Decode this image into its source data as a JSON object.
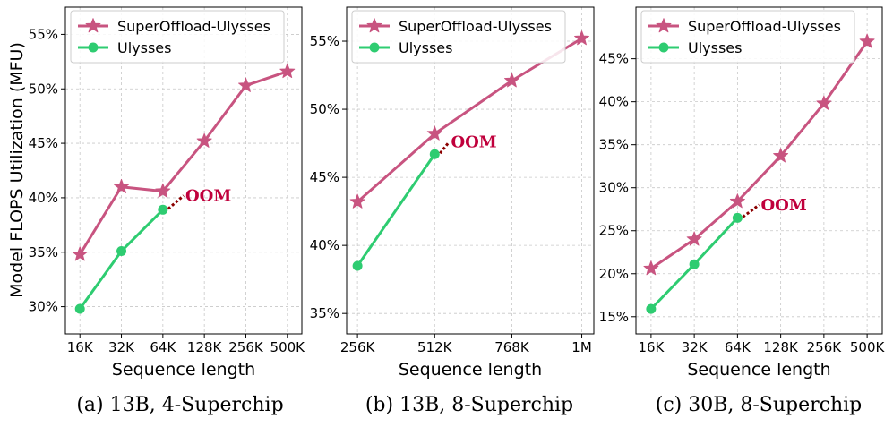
{
  "colors": {
    "superoffload": "#c85480",
    "ulysses": "#2ecc71",
    "oom_line": "#8b0000",
    "oom_text": "#c0003c",
    "grid": "#c8c8c8"
  },
  "y_axis_label": "Model FLOPS Utilization (MFU)",
  "chart_data": [
    {
      "type": "line",
      "caption": "(a) 13B,  4-Superchip",
      "xlabel": "Sequence length",
      "ylabel": "Model FLOPS Utilization (MFU)",
      "x_ticks": [
        "16K",
        "32K",
        "64K",
        "128K",
        "256K",
        "500K"
      ],
      "x_tick_positions": [
        0,
        1,
        2,
        3,
        4,
        5
      ],
      "xlim": [
        -0.35,
        5.35
      ],
      "ylim": [
        27.5,
        57.5
      ],
      "y_ticks": [
        30,
        35,
        40,
        45,
        50,
        55
      ],
      "y_tick_labels": [
        "30%",
        "35%",
        "40%",
        "45%",
        "50%",
        "55%"
      ],
      "grid": true,
      "legend": "top-left",
      "series": [
        {
          "name": "SuperOffload-Ulysses",
          "marker": "star",
          "x": [
            0,
            1,
            2,
            3,
            4,
            5
          ],
          "values": [
            34.8,
            41.0,
            40.6,
            45.2,
            50.3,
            51.6
          ]
        },
        {
          "name": "Ulysses",
          "marker": "circle",
          "x": [
            0,
            1,
            2
          ],
          "values": [
            29.8,
            35.1,
            38.9
          ]
        }
      ],
      "annotation": {
        "text": "OOM",
        "from": [
          2,
          38.9
        ],
        "to": [
          2.5,
          40.2
        ]
      }
    },
    {
      "type": "line",
      "caption": "(b) 13B,  8-Superchip",
      "xlabel": "Sequence length",
      "ylabel": "",
      "x_ticks": [
        "256K",
        "512K",
        "768K",
        "1M"
      ],
      "x_tick_positions": [
        256,
        512,
        768,
        1000
      ],
      "xlim": [
        220,
        1040
      ],
      "ylim": [
        33.5,
        57.5
      ],
      "y_ticks": [
        35,
        40,
        45,
        50,
        55
      ],
      "y_tick_labels": [
        "35%",
        "40%",
        "45%",
        "50%",
        "55%"
      ],
      "grid": true,
      "legend": "top-left",
      "series": [
        {
          "name": "SuperOffload-Ulysses",
          "marker": "star",
          "x": [
            256,
            512,
            768,
            1000
          ],
          "values": [
            43.2,
            48.2,
            52.1,
            55.2
          ]
        },
        {
          "name": "Ulysses",
          "marker": "circle",
          "x": [
            256,
            512
          ],
          "values": [
            38.5,
            46.7
          ]
        }
      ],
      "annotation": {
        "text": "OOM",
        "from": [
          512,
          46.7
        ],
        "to": [
          560,
          47.6
        ]
      }
    },
    {
      "type": "line",
      "caption": "(c) 30B,  8-Superchip",
      "xlabel": "Sequence length",
      "ylabel": "",
      "x_ticks": [
        "16K",
        "32K",
        "64K",
        "128K",
        "256K",
        "500K"
      ],
      "x_tick_positions": [
        0,
        1,
        2,
        3,
        4,
        5
      ],
      "xlim": [
        -0.35,
        5.35
      ],
      "ylim": [
        13.0,
        51.0
      ],
      "y_ticks": [
        15,
        20,
        25,
        30,
        35,
        40,
        45
      ],
      "y_tick_labels": [
        "15%",
        "20%",
        "25%",
        "30%",
        "35%",
        "40%",
        "45%"
      ],
      "grid": true,
      "legend": "top-left",
      "series": [
        {
          "name": "SuperOffload-Ulysses",
          "marker": "star",
          "x": [
            0,
            1,
            2,
            3,
            4,
            5
          ],
          "values": [
            20.6,
            24.0,
            28.4,
            33.7,
            39.8,
            47.0
          ]
        },
        {
          "name": "Ulysses",
          "marker": "circle",
          "x": [
            0,
            1,
            2
          ],
          "values": [
            15.9,
            21.1,
            26.5
          ]
        }
      ],
      "annotation": {
        "text": "OOM",
        "from": [
          2,
          26.5
        ],
        "to": [
          2.5,
          28.0
        ]
      }
    }
  ]
}
